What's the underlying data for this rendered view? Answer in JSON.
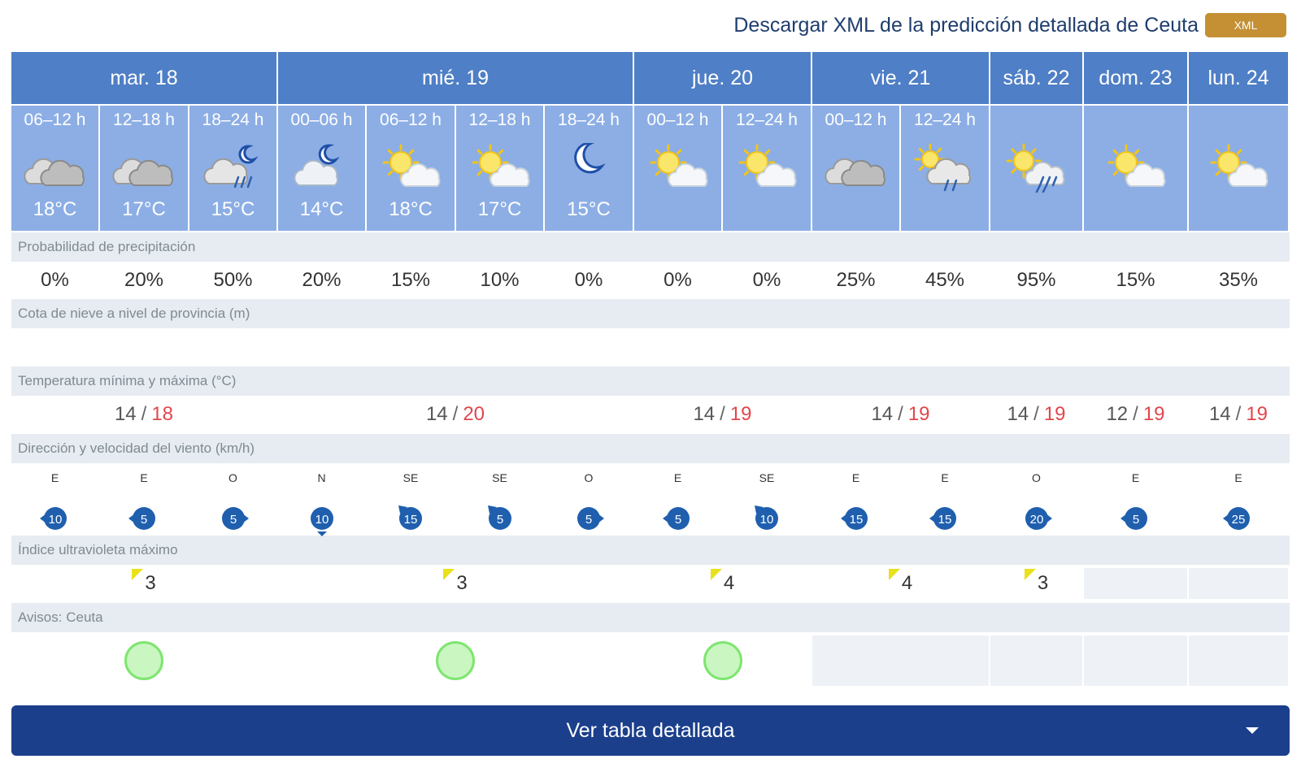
{
  "header": {
    "download_text": "Descargar XML de la predicción detallada de Ceuta",
    "xml_badge": "XML"
  },
  "days": [
    {
      "label": "mar. 18",
      "tmin": "14",
      "tmax": "18",
      "uv": "3",
      "warning": true
    },
    {
      "label": "mié. 19",
      "tmin": "14",
      "tmax": "20",
      "uv": "3",
      "warning": true
    },
    {
      "label": "jue. 20",
      "tmin": "14",
      "tmax": "19",
      "uv": "4",
      "warning": true
    },
    {
      "label": "vie. 21",
      "tmin": "14",
      "tmax": "19",
      "uv": "4",
      "warning": false
    },
    {
      "label": "sáb. 22",
      "tmin": "14",
      "tmax": "19",
      "uv": "3",
      "warning": false
    },
    {
      "label": "dom. 23",
      "tmin": "12",
      "tmax": "19",
      "uv": "",
      "warning": false
    },
    {
      "label": "lun. 24",
      "tmin": "14",
      "tmax": "19",
      "uv": "",
      "warning": false
    }
  ],
  "periods": [
    {
      "label": "06–12 h",
      "temp": "18°C",
      "icon": "cloudy-icon",
      "precip": "0%",
      "wind_dir": "E",
      "wind_speed": "10"
    },
    {
      "label": "12–18 h",
      "temp": "17°C",
      "icon": "cloudy-icon",
      "precip": "20%",
      "wind_dir": "E",
      "wind_speed": "5"
    },
    {
      "label": "18–24 h",
      "temp": "15°C",
      "icon": "night-cloud-rain-icon",
      "precip": "50%",
      "wind_dir": "O",
      "wind_speed": "5"
    },
    {
      "label": "00–06 h",
      "temp": "14°C",
      "icon": "night-cloud-icon",
      "precip": "20%",
      "wind_dir": "N",
      "wind_speed": "10"
    },
    {
      "label": "06–12 h",
      "temp": "18°C",
      "icon": "sun-cloud-icon",
      "precip": "15%",
      "wind_dir": "SE",
      "wind_speed": "15"
    },
    {
      "label": "12–18 h",
      "temp": "17°C",
      "icon": "sun-cloud-icon",
      "precip": "10%",
      "wind_dir": "SE",
      "wind_speed": "5"
    },
    {
      "label": "18–24 h",
      "temp": "15°C",
      "icon": "moon-icon",
      "precip": "0%",
      "wind_dir": "O",
      "wind_speed": "5"
    },
    {
      "label": "00–12 h",
      "temp": "",
      "icon": "sun-cloud-icon",
      "precip": "0%",
      "wind_dir": "E",
      "wind_speed": "5"
    },
    {
      "label": "12–24 h",
      "temp": "",
      "icon": "sun-cloud-icon",
      "precip": "0%",
      "wind_dir": "SE",
      "wind_speed": "10"
    },
    {
      "label": "00–12 h",
      "temp": "",
      "icon": "cloudy-icon",
      "precip": "25%",
      "wind_dir": "E",
      "wind_speed": "15"
    },
    {
      "label": "12–24 h",
      "temp": "",
      "icon": "sun-cloud-rain-icon",
      "precip": "45%",
      "wind_dir": "E",
      "wind_speed": "15"
    },
    {
      "label": "",
      "temp": "",
      "icon": "sun-cloud-heavy-rain-icon",
      "precip": "95%",
      "wind_dir": "O",
      "wind_speed": "20"
    },
    {
      "label": "",
      "temp": "",
      "icon": "sun-cloud-icon",
      "precip": "15%",
      "wind_dir": "E",
      "wind_speed": "5"
    },
    {
      "label": "",
      "temp": "",
      "icon": "sun-cloud-icon",
      "precip": "35%",
      "wind_dir": "E",
      "wind_speed": "25"
    }
  ],
  "sections": {
    "precip": "Probabilidad de precipitación",
    "snow": "Cota de nieve a nivel de provincia (m)",
    "temp": "Temperatura mínima y máxima (°C)",
    "wind": "Dirección y velocidad del viento (km/h)",
    "uv": "Índice ultravioleta máximo",
    "warnings": "Avisos: Ceuta"
  },
  "detail_button": "Ver tabla detallada",
  "colors": {
    "day_header": "#4f7fc6",
    "period_header": "#8caee5",
    "section_label": "#e6ecf1",
    "max_temp": "#e0474c",
    "button": "#1b3f8b",
    "xml_badge": "#c49033",
    "warning_green": "#7ee56f"
  }
}
